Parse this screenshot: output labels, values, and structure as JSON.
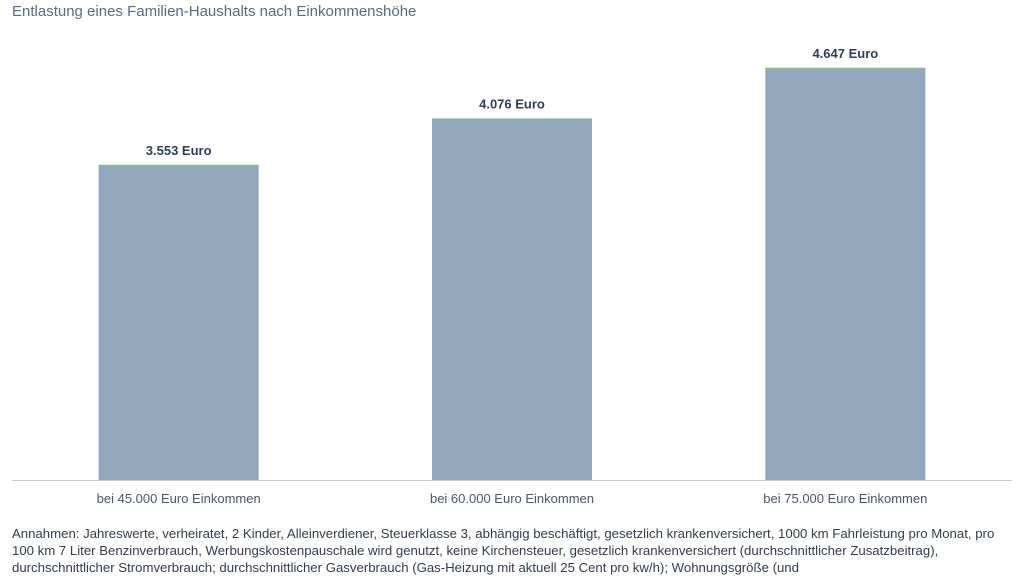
{
  "chart_data": {
    "type": "bar",
    "title": "Entlastung eines Familien-Haushalts nach Einkommenshöhe",
    "categories": [
      "bei 45.000 Euro Einkommen",
      "bei 60.000 Euro Einkommen",
      "bei 75.000 Euro Einkommen"
    ],
    "values": [
      3553,
      4076,
      4647
    ],
    "value_labels": [
      "3.553 Euro",
      "4.076 Euro",
      "4.647 Euro"
    ],
    "ylim": [
      0,
      5000
    ],
    "grid": false,
    "bar_color": "#94a6bb",
    "bar_top_color": "#8fb59b"
  },
  "footnote": "Annahmen: Jahreswerte, verheiratet, 2 Kinder, Alleinverdiener, Steuerklasse 3, abhängig beschäftigt, gesetzlich krankenversichert, 1000 km Fahrleistung pro Monat, pro 100 km 7 Liter Benzinverbrauch,  Werbungskostenpauschale wird genutzt, keine Kirchensteuer, gesetzlich krankenversichert (durchschnittlicher Zusatzbeitrag), durchschnittlicher Stromverbrauch; durchschnittlicher Gasverbrauch (Gas-Heizung mit aktuell 25 Cent pro kw/h); Wohnungsgröße (und"
}
